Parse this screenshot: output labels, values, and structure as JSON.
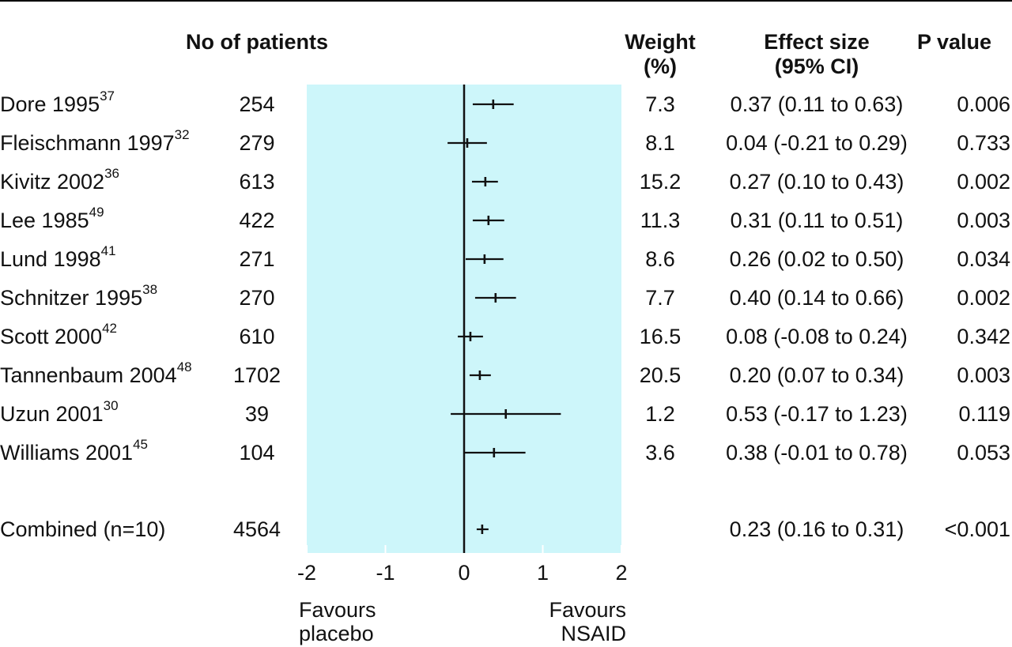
{
  "headers": {
    "patients": "No of patients",
    "weight_line1": "Weight",
    "weight_line2": "(%)",
    "effect_line1": "Effect size",
    "effect_line2": "(95% CI)",
    "pvalue": "P value"
  },
  "rows": [
    {
      "study": "Dore 1995",
      "ref": "37",
      "patients": "254",
      "weight": "7.3",
      "effect_text": "0.37 (0.11 to 0.63)",
      "p": "0.006"
    },
    {
      "study": "Fleischmann 1997",
      "ref": "32",
      "patients": "279",
      "weight": "8.1",
      "effect_text": "0.04 (-0.21 to 0.29)",
      "p": "0.733"
    },
    {
      "study": "Kivitz 2002",
      "ref": "36",
      "patients": "613",
      "weight": "15.2",
      "effect_text": "0.27 (0.10 to 0.43)",
      "p": "0.002"
    },
    {
      "study": "Lee 1985",
      "ref": "49",
      "patients": "422",
      "weight": "11.3",
      "effect_text": "0.31 (0.11 to 0.51)",
      "p": "0.003"
    },
    {
      "study": "Lund 1998",
      "ref": "41",
      "patients": "271",
      "weight": "8.6",
      "effect_text": "0.26 (0.02 to 0.50)",
      "p": "0.034"
    },
    {
      "study": "Schnitzer 1995",
      "ref": "38",
      "patients": "270",
      "weight": "7.7",
      "effect_text": "0.40 (0.14 to 0.66)",
      "p": "0.002"
    },
    {
      "study": "Scott 2000",
      "ref": "42",
      "patients": "610",
      "weight": "16.5",
      "effect_text": "0.08 (-0.08 to 0.24)",
      "p": "0.342"
    },
    {
      "study": "Tannenbaum 2004",
      "ref": "48",
      "patients": "1702",
      "weight": "20.5",
      "effect_text": "0.20 (0.07 to 0.34)",
      "p": "0.003"
    },
    {
      "study": "Uzun 2001",
      "ref": "30",
      "patients": "39",
      "weight": "1.2",
      "effect_text": "0.53 (-0.17 to 1.23)",
      "p": "0.119"
    },
    {
      "study": "Williams 2001",
      "ref": "45",
      "patients": "104",
      "weight": "3.6",
      "effect_text": "0.38 (-0.01 to 0.78)",
      "p": "0.053"
    }
  ],
  "combined": {
    "study": "Combined (n=10)",
    "patients": "4564",
    "effect_text": "0.23 (0.16 to 0.31)",
    "p": "<0.001"
  },
  "favours": {
    "left_line1": "Favours",
    "left_line2": "placebo",
    "right_line1": "Favours",
    "right_line2": "NSAID"
  },
  "colors": {
    "plot_background": "#cdf6fa",
    "ink": "#111111"
  },
  "chart_data": {
    "type": "forest",
    "xlim": [
      -2,
      2
    ],
    "ticks": [
      "-2",
      "-1",
      "0",
      "1",
      "2"
    ],
    "reference_line": 0,
    "series": [
      {
        "effect": 0.37,
        "lo": 0.11,
        "hi": 0.63
      },
      {
        "effect": 0.04,
        "lo": -0.21,
        "hi": 0.29
      },
      {
        "effect": 0.27,
        "lo": 0.1,
        "hi": 0.43
      },
      {
        "effect": 0.31,
        "lo": 0.11,
        "hi": 0.51
      },
      {
        "effect": 0.26,
        "lo": 0.02,
        "hi": 0.5
      },
      {
        "effect": 0.4,
        "lo": 0.14,
        "hi": 0.66
      },
      {
        "effect": 0.08,
        "lo": -0.08,
        "hi": 0.24
      },
      {
        "effect": 0.2,
        "lo": 0.07,
        "hi": 0.34
      },
      {
        "effect": 0.53,
        "lo": -0.17,
        "hi": 1.23
      },
      {
        "effect": 0.38,
        "lo": -0.01,
        "hi": 0.78
      }
    ],
    "combined": {
      "effect": 0.23,
      "lo": 0.16,
      "hi": 0.31
    }
  }
}
